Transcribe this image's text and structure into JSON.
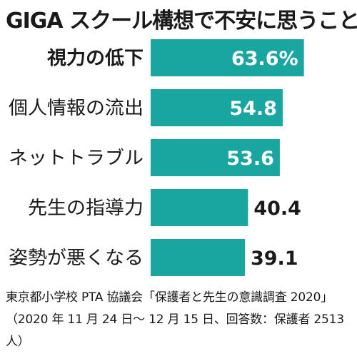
{
  "chart_data": {
    "type": "bar",
    "orientation": "horizontal",
    "title": "GIGA スクール構想で不安に思うこと",
    "categories": [
      "視力の低下",
      "個人情報の流出",
      "ネットトラブル",
      "先生の指導力",
      "姿勢が悪くなる"
    ],
    "values": [
      63.6,
      54.8,
      53.6,
      40.4,
      39.1
    ],
    "value_labels": [
      "63.6%",
      "54.8",
      "53.6",
      "40.4",
      "39.1"
    ],
    "highlight_index": 0,
    "xlim": [
      0,
      80
    ],
    "grid": false,
    "legend": "none",
    "bar_color": "#1aa6a0",
    "note": "東京都小学校 PTA 協議会「保護者と先生の意識調査 2020」（2020 年 11 月 24 日〜 12 月 15 日、回答数：保護者 2513 人）"
  }
}
